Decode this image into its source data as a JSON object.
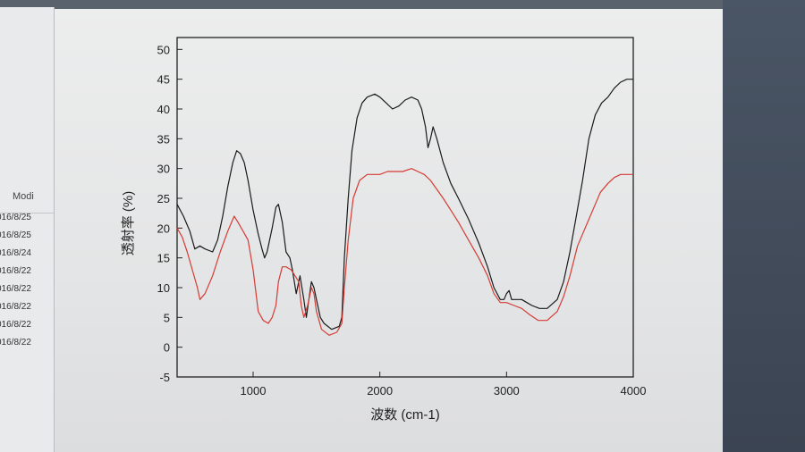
{
  "file_list": {
    "column_header": "Modi",
    "dates": [
      "016/8/25",
      "016/8/25",
      "016/8/24",
      "016/8/22",
      "016/8/22",
      "016/8/22",
      "016/8/22",
      "016/8/22"
    ]
  },
  "colors": {
    "series_black": "#1a1a1a",
    "series_red": "#d63b34",
    "axis": "#222222"
  },
  "chart_data": {
    "type": "line",
    "title": "",
    "xlabel": "波数 (cm-1)",
    "ylabel": "透射率 (%)",
    "xlim": [
      400,
      4000
    ],
    "ylim": [
      -5,
      52
    ],
    "xticks": [
      1000,
      2000,
      3000,
      4000
    ],
    "yticks": [
      -5,
      0,
      5,
      10,
      15,
      20,
      25,
      30,
      35,
      40,
      45,
      50
    ],
    "grid": false,
    "legend": "none",
    "series": [
      {
        "color": "#1a1a1a",
        "points": [
          [
            400,
            24
          ],
          [
            450,
            22
          ],
          [
            500,
            19.5
          ],
          [
            540,
            16.5
          ],
          [
            580,
            17
          ],
          [
            620,
            16.5
          ],
          [
            680,
            16
          ],
          [
            720,
            18
          ],
          [
            760,
            22
          ],
          [
            800,
            27
          ],
          [
            840,
            31
          ],
          [
            870,
            33
          ],
          [
            900,
            32.5
          ],
          [
            930,
            31
          ],
          [
            960,
            28
          ],
          [
            1000,
            23
          ],
          [
            1040,
            19
          ],
          [
            1070,
            16.5
          ],
          [
            1090,
            15
          ],
          [
            1110,
            16
          ],
          [
            1150,
            20
          ],
          [
            1180,
            23.5
          ],
          [
            1200,
            24
          ],
          [
            1230,
            21
          ],
          [
            1260,
            16
          ],
          [
            1290,
            15
          ],
          [
            1310,
            13
          ],
          [
            1340,
            9
          ],
          [
            1370,
            12
          ],
          [
            1400,
            8
          ],
          [
            1420,
            5
          ],
          [
            1440,
            8
          ],
          [
            1460,
            11
          ],
          [
            1480,
            10
          ],
          [
            1500,
            8
          ],
          [
            1530,
            5
          ],
          [
            1560,
            4
          ],
          [
            1620,
            3
          ],
          [
            1680,
            3.5
          ],
          [
            1700,
            5
          ],
          [
            1720,
            15
          ],
          [
            1750,
            25
          ],
          [
            1780,
            33
          ],
          [
            1820,
            38.5
          ],
          [
            1860,
            41
          ],
          [
            1900,
            42
          ],
          [
            1960,
            42.5
          ],
          [
            2000,
            42
          ],
          [
            2050,
            41
          ],
          [
            2100,
            40
          ],
          [
            2150,
            40.5
          ],
          [
            2200,
            41.5
          ],
          [
            2250,
            42
          ],
          [
            2300,
            41.5
          ],
          [
            2330,
            40
          ],
          [
            2360,
            37
          ],
          [
            2380,
            33.5
          ],
          [
            2400,
            35
          ],
          [
            2420,
            37
          ],
          [
            2450,
            35
          ],
          [
            2500,
            31
          ],
          [
            2560,
            27.5
          ],
          [
            2620,
            25
          ],
          [
            2700,
            21.5
          ],
          [
            2780,
            17.5
          ],
          [
            2850,
            13.5
          ],
          [
            2900,
            10
          ],
          [
            2950,
            8
          ],
          [
            2980,
            8
          ],
          [
            3000,
            9
          ],
          [
            3020,
            9.5
          ],
          [
            3040,
            8
          ],
          [
            3080,
            8
          ],
          [
            3120,
            8
          ],
          [
            3160,
            7.5
          ],
          [
            3200,
            7
          ],
          [
            3260,
            6.5
          ],
          [
            3320,
            6.5
          ],
          [
            3400,
            8
          ],
          [
            3450,
            11
          ],
          [
            3500,
            16
          ],
          [
            3550,
            22
          ],
          [
            3600,
            28
          ],
          [
            3650,
            35
          ],
          [
            3700,
            39
          ],
          [
            3750,
            41
          ],
          [
            3800,
            42
          ],
          [
            3850,
            43.5
          ],
          [
            3900,
            44.5
          ],
          [
            3950,
            45
          ],
          [
            4000,
            45
          ]
        ]
      },
      {
        "color": "#d63b34",
        "points": [
          [
            400,
            20
          ],
          [
            440,
            18.5
          ],
          [
            480,
            16
          ],
          [
            520,
            13
          ],
          [
            560,
            10
          ],
          [
            580,
            8
          ],
          [
            620,
            9
          ],
          [
            680,
            12
          ],
          [
            740,
            16
          ],
          [
            800,
            19.5
          ],
          [
            850,
            22
          ],
          [
            880,
            21
          ],
          [
            920,
            19.5
          ],
          [
            960,
            18
          ],
          [
            1000,
            13
          ],
          [
            1040,
            6
          ],
          [
            1080,
            4.5
          ],
          [
            1120,
            4
          ],
          [
            1150,
            5
          ],
          [
            1180,
            7
          ],
          [
            1200,
            11
          ],
          [
            1230,
            13.5
          ],
          [
            1260,
            13.5
          ],
          [
            1300,
            13
          ],
          [
            1330,
            12
          ],
          [
            1360,
            11
          ],
          [
            1380,
            7
          ],
          [
            1400,
            5
          ],
          [
            1430,
            7
          ],
          [
            1460,
            10
          ],
          [
            1480,
            9
          ],
          [
            1500,
            6
          ],
          [
            1540,
            3
          ],
          [
            1600,
            2
          ],
          [
            1660,
            2.5
          ],
          [
            1700,
            4
          ],
          [
            1720,
            10
          ],
          [
            1750,
            18
          ],
          [
            1790,
            25
          ],
          [
            1840,
            28
          ],
          [
            1900,
            29
          ],
          [
            1960,
            29
          ],
          [
            2000,
            29
          ],
          [
            2060,
            29.5
          ],
          [
            2120,
            29.5
          ],
          [
            2180,
            29.5
          ],
          [
            2250,
            30
          ],
          [
            2300,
            29.5
          ],
          [
            2350,
            29
          ],
          [
            2400,
            28
          ],
          [
            2450,
            26.5
          ],
          [
            2500,
            25
          ],
          [
            2560,
            23
          ],
          [
            2620,
            21
          ],
          [
            2700,
            18
          ],
          [
            2780,
            15
          ],
          [
            2850,
            12
          ],
          [
            2900,
            9
          ],
          [
            2950,
            7.5
          ],
          [
            3000,
            7.5
          ],
          [
            3060,
            7
          ],
          [
            3120,
            6.5
          ],
          [
            3180,
            5.5
          ],
          [
            3250,
            4.5
          ],
          [
            3320,
            4.5
          ],
          [
            3400,
            6
          ],
          [
            3450,
            8.5
          ],
          [
            3500,
            12
          ],
          [
            3560,
            17
          ],
          [
            3620,
            20
          ],
          [
            3680,
            23
          ],
          [
            3740,
            26
          ],
          [
            3800,
            27.5
          ],
          [
            3850,
            28.5
          ],
          [
            3900,
            29
          ],
          [
            3950,
            29
          ],
          [
            4000,
            29
          ]
        ]
      }
    ]
  }
}
